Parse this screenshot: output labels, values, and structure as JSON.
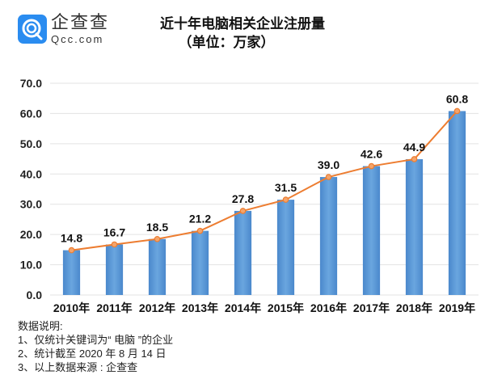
{
  "brand": {
    "name": "企查查",
    "url": "Qcc.com",
    "icon": "qcc-logo-icon",
    "color": "#2a8cf0"
  },
  "chart_data": {
    "type": "bar",
    "title": "近十年电脑相关企业注册量",
    "subtitle": "（单位：万家）",
    "categories": [
      "2010年",
      "2011年",
      "2012年",
      "2013年",
      "2014年",
      "2015年",
      "2016年",
      "2017年",
      "2018年",
      "2019年"
    ],
    "values": [
      14.8,
      16.7,
      18.5,
      21.2,
      27.8,
      31.5,
      39.0,
      42.6,
      44.9,
      60.8
    ],
    "value_labels": [
      "14.8",
      "16.7",
      "18.5",
      "21.2",
      "27.8",
      "31.5",
      "39.0",
      "42.6",
      "44.9",
      "60.8"
    ],
    "overlay_line": true,
    "xlabel": "",
    "ylabel": "",
    "ylim": [
      0,
      70
    ],
    "yticks": [
      "0.0",
      "10.0",
      "20.0",
      "30.0",
      "40.0",
      "50.0",
      "60.0",
      "70.0"
    ],
    "grid": true,
    "legend": "none",
    "colors": {
      "bar": "#5b9bd5",
      "bar_dark": "#3f7fc0",
      "line": "#ed7d31",
      "grid": "#e3e3e3"
    }
  },
  "notes": {
    "heading": "数据说明:",
    "items": [
      "1、仅统计关键词为“ 电脑 ”的企业",
      "2、统计截至 2020 年 8 月 14 日",
      "3、以上数据来源 : 企查查"
    ]
  }
}
